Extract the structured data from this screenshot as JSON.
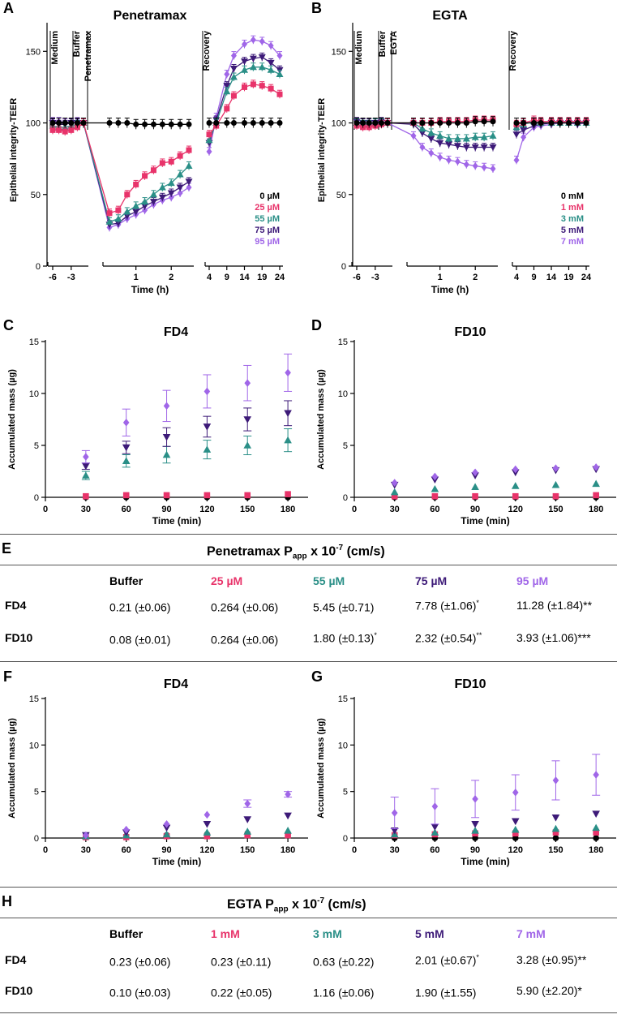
{
  "colors": {
    "buffer": "#000000",
    "c1": "#e8336a",
    "c2": "#2a8f87",
    "c3": "#3d1a78",
    "c4": "#a066e8"
  },
  "chart_data": [
    {
      "panel": "A",
      "type": "line",
      "title": "Penetramax",
      "ylabel": "Epithelial integrity-TEER",
      "xlabel": "Time  (h)",
      "ylim": [
        0,
        170
      ],
      "yticks": [
        "0",
        "50",
        "100",
        "150"
      ],
      "xticks": [
        "-6",
        "-3",
        "1",
        "2",
        "4",
        "9",
        "14",
        "19",
        "24"
      ],
      "phases": [
        "Medium",
        "Buffer",
        "Penetramax",
        "Recovery"
      ],
      "legend": [
        "0 µM",
        "25 µM",
        "55 µM",
        "75 µM",
        "95 µM"
      ],
      "segments": {
        "pre": {
          "x": [
            -6,
            -5,
            -4,
            -3,
            -2,
            -1
          ],
          "series": [
            [
              100,
              100,
              100,
              100,
              100,
              100
            ],
            [
              95,
              95,
              94,
              95,
              97,
              100
            ],
            [
              98,
              97,
              97,
              98,
              99,
              100
            ],
            [
              100,
              99,
              99,
              100,
              100,
              100
            ],
            [
              101,
              101,
              100,
              100,
              101,
              100
            ]
          ]
        },
        "exposure": {
          "x": [
            0.25,
            0.5,
            0.75,
            1,
            1.25,
            1.5,
            1.75,
            2,
            2.25,
            2.5
          ],
          "series": [
            [
              100,
              100,
              100,
              99,
              99,
              99,
              99,
              99,
              99,
              99
            ],
            [
              37,
              39,
              50,
              57,
              63,
              67,
              72,
              73,
              77,
              81
            ],
            [
              31,
              33,
              38,
              42,
              45,
              50,
              55,
              58,
              64,
              70
            ],
            [
              29,
              30,
              35,
              38,
              42,
              45,
              48,
              51,
              55,
              59
            ],
            [
              27,
              29,
              33,
              36,
              39,
              43,
              46,
              48,
              51,
              55
            ]
          ]
        },
        "recovery": {
          "x": [
            4,
            6,
            9,
            11,
            14,
            16.5,
            19,
            21.5,
            24
          ],
          "series": [
            [
              100,
              100,
              100,
              100,
              100,
              100,
              100,
              100,
              100
            ],
            [
              92,
              98,
              110,
              119,
              125,
              127,
              126,
              124,
              120
            ],
            [
              88,
              100,
              122,
              132,
              137,
              139,
              139,
              137,
              134
            ],
            [
              86,
              102,
              126,
              138,
              143,
              145,
              146,
              142,
              137
            ],
            [
              80,
              104,
              134,
              147,
              155,
              158,
              157,
              154,
              147
            ]
          ]
        }
      }
    },
    {
      "panel": "B",
      "type": "line",
      "title": "EGTA",
      "ylabel": "Epithelial integrity-TEER",
      "xlabel": "Time  (h)",
      "ylim": [
        0,
        170
      ],
      "yticks": [
        "0",
        "50",
        "100",
        "150"
      ],
      "xticks": [
        "-6",
        "-3",
        "1",
        "2",
        "4",
        "9",
        "14",
        "19",
        "24"
      ],
      "phases": [
        "Medium",
        "Buffer",
        "EGTA",
        "Recovery"
      ],
      "legend": [
        "0 mM",
        "1 mM",
        "3 mM",
        "5 mM",
        "7 mM"
      ],
      "segments": {
        "pre": {
          "x": [
            -6,
            -5,
            -4,
            -3,
            -2,
            -1
          ],
          "series": [
            [
              100,
              100,
              100,
              100,
              100,
              100
            ],
            [
              98,
              97,
              97,
              98,
              99,
              100
            ],
            [
              100,
              99,
              99,
              100,
              100,
              100
            ],
            [
              101,
              100,
              100,
              100,
              101,
              100
            ],
            [
              99,
              98,
              99,
              99,
              100,
              100
            ]
          ]
        },
        "exposure": {
          "x": [
            0.25,
            0.5,
            0.75,
            1,
            1.25,
            1.5,
            1.75,
            2,
            2.25,
            2.5
          ],
          "series": [
            [
              100,
              100,
              100,
              100,
              100,
              100,
              100,
              101,
              101,
              101
            ],
            [
              100,
              100,
              100,
              101,
              101,
              101,
              101,
              102,
              102,
              102
            ],
            [
              100,
              96,
              93,
              91,
              89,
              89,
              89,
              90,
              90,
              91
            ],
            [
              99,
              93,
              89,
              86,
              85,
              84,
              83,
              83,
              83,
              83
            ],
            [
              91,
              83,
              79,
              76,
              74,
              73,
              71,
              70,
              69,
              68
            ]
          ]
        },
        "recovery": {
          "x": [
            4,
            6,
            9,
            11,
            14,
            16.5,
            19,
            21.5,
            24
          ],
          "series": [
            [
              100,
              100,
              100,
              100,
              100,
              100,
              100,
              100,
              100
            ],
            [
              99,
              100,
              102,
              101,
              101,
              101,
              101,
              101,
              101
            ],
            [
              97,
              99,
              101,
              100,
              100,
              100,
              100,
              100,
              100
            ],
            [
              92,
              95,
              98,
              99,
              100,
              100,
              100,
              100,
              100
            ],
            [
              74,
              90,
              97,
              98,
              99,
              100,
              100,
              99,
              100
            ]
          ]
        }
      }
    },
    {
      "panel": "C",
      "type": "scatter",
      "title": "FD4",
      "xlabel": "Time (min)",
      "ylabel": "Accumulated mass (µg)",
      "ylim": [
        0,
        15
      ],
      "xlim": [
        0,
        195
      ],
      "xticks": [
        "0",
        "30",
        "60",
        "90",
        "120",
        "150",
        "180"
      ],
      "yticks": [
        "0",
        "5",
        "10",
        "15"
      ],
      "x": [
        30,
        60,
        90,
        120,
        150,
        180
      ],
      "series": [
        {
          "name": "Buffer",
          "values": [
            0,
            0,
            0,
            0,
            0,
            0
          ]
        },
        {
          "name": "25 µM",
          "values": [
            0.1,
            0.2,
            0.2,
            0.2,
            0.2,
            0.3
          ]
        },
        {
          "name": "55 µM",
          "values": [
            2.1,
            3.5,
            4.1,
            4.6,
            5.0,
            5.5
          ]
        },
        {
          "name": "75 µM",
          "values": [
            3.0,
            4.8,
            5.8,
            6.8,
            7.5,
            8.1
          ]
        },
        {
          "name": "95 µM",
          "values": [
            3.9,
            7.2,
            8.8,
            10.2,
            11.0,
            12.0
          ]
        }
      ],
      "errors": [
        [
          0,
          0,
          0,
          0,
          0,
          0
        ],
        [
          0.05,
          0.05,
          0.05,
          0.05,
          0.05,
          0.05
        ],
        [
          0.4,
          0.6,
          0.8,
          0.9,
          0.9,
          1.1
        ],
        [
          0.3,
          0.6,
          0.9,
          1.0,
          1.1,
          1.2
        ],
        [
          0.6,
          1.3,
          1.5,
          1.6,
          1.7,
          1.8
        ]
      ]
    },
    {
      "panel": "D",
      "type": "scatter",
      "title": "FD10",
      "xlabel": "Time (min)",
      "ylabel": "Accumulated mass (µg)",
      "ylim": [
        0,
        15
      ],
      "xlim": [
        0,
        195
      ],
      "xticks": [
        "0",
        "30",
        "60",
        "90",
        "120",
        "150",
        "180"
      ],
      "yticks": [
        "0",
        "5",
        "10",
        "15"
      ],
      "x": [
        30,
        60,
        90,
        120,
        150,
        180
      ],
      "series": [
        {
          "name": "Buffer",
          "values": [
            0,
            0,
            0,
            0,
            0,
            0
          ]
        },
        {
          "name": "25 µM",
          "values": [
            0.1,
            0.1,
            0.1,
            0.1,
            0.1,
            0.2
          ]
        },
        {
          "name": "55 µM",
          "values": [
            0.5,
            0.8,
            1.0,
            1.1,
            1.2,
            1.3
          ]
        },
        {
          "name": "75 µM",
          "values": [
            1.2,
            1.7,
            2.1,
            2.4,
            2.6,
            2.7
          ]
        },
        {
          "name": "95 µM",
          "values": [
            1.4,
            2.0,
            2.4,
            2.7,
            2.8,
            2.9
          ]
        }
      ],
      "errors": [
        [
          0,
          0,
          0,
          0,
          0,
          0
        ],
        [
          0,
          0,
          0,
          0,
          0,
          0
        ],
        [
          0.1,
          0.1,
          0.1,
          0.1,
          0.1,
          0.1
        ],
        [
          0.1,
          0.1,
          0.1,
          0.1,
          0.1,
          0.1
        ],
        [
          0.1,
          0.1,
          0.1,
          0.1,
          0.1,
          0.1
        ]
      ]
    },
    {
      "panel": "F",
      "type": "scatter",
      "title": "FD4",
      "xlabel": "Time (min)",
      "ylabel": "Accumulated mass (µg)",
      "ylim": [
        0,
        15
      ],
      "xlim": [
        0,
        195
      ],
      "xticks": [
        "0",
        "30",
        "60",
        "90",
        "120",
        "150",
        "180"
      ],
      "yticks": [
        "0",
        "5",
        "10",
        "15"
      ],
      "x": [
        30,
        60,
        90,
        120,
        150,
        180
      ],
      "series": [
        {
          "name": "Buffer",
          "values": [
            0.1,
            0.2,
            0.3,
            0.4,
            0.5,
            0.5
          ]
        },
        {
          "name": "1 mM",
          "values": [
            0.1,
            0.1,
            0.2,
            0.2,
            0.3,
            0.3
          ]
        },
        {
          "name": "3 mM",
          "values": [
            0.2,
            0.3,
            0.4,
            0.6,
            0.7,
            0.8
          ]
        },
        {
          "name": "5 mM",
          "values": [
            0.3,
            0.6,
            1.1,
            1.5,
            2.0,
            2.4
          ]
        },
        {
          "name": "7 mM",
          "values": [
            0.3,
            0.9,
            1.5,
            2.5,
            3.7,
            4.7
          ]
        }
      ],
      "errors": [
        [
          0,
          0,
          0,
          0,
          0,
          0
        ],
        [
          0,
          0,
          0,
          0,
          0,
          0
        ],
        [
          0,
          0,
          0,
          0,
          0,
          0
        ],
        [
          0.1,
          0.1,
          0.1,
          0.1,
          0.1,
          0.1
        ],
        [
          0.1,
          0.1,
          0.1,
          0.1,
          0.4,
          0.3
        ]
      ]
    },
    {
      "panel": "G",
      "type": "scatter",
      "title": "FD10",
      "xlabel": "Time (min)",
      "ylabel": "Accumulated mass (µg)",
      "ylim": [
        0,
        15
      ],
      "xlim": [
        0,
        195
      ],
      "xticks": [
        "0",
        "30",
        "60",
        "90",
        "120",
        "150",
        "180"
      ],
      "yticks": [
        "0",
        "5",
        "10",
        "15"
      ],
      "x": [
        30,
        60,
        90,
        120,
        150,
        180
      ],
      "series": [
        {
          "name": "Buffer",
          "values": [
            0,
            0,
            0,
            0,
            0,
            0
          ]
        },
        {
          "name": "1 mM",
          "values": [
            0.3,
            0.4,
            0.5,
            0.5,
            0.6,
            0.6
          ]
        },
        {
          "name": "3 mM",
          "values": [
            0.4,
            0.6,
            0.8,
            0.9,
            1.0,
            1.1
          ]
        },
        {
          "name": "5 mM",
          "values": [
            0.8,
            1.2,
            1.5,
            1.8,
            2.2,
            2.6
          ]
        },
        {
          "name": "7 mM",
          "values": [
            2.7,
            3.4,
            4.2,
            4.9,
            6.2,
            6.8
          ]
        }
      ],
      "errors": [
        [
          0,
          0,
          0,
          0,
          0,
          0
        ],
        [
          0,
          0,
          0,
          0,
          0,
          0
        ],
        [
          0,
          0,
          0,
          0,
          0,
          0
        ],
        [
          0.1,
          0.1,
          0.1,
          0.1,
          0.1,
          0.1
        ],
        [
          1.7,
          1.9,
          2.0,
          1.9,
          2.1,
          2.2
        ]
      ]
    }
  ],
  "table_e": {
    "label": "E",
    "title_main": "Penetramax P",
    "title_sub": "app",
    "title_mid": " x 10",
    "title_sup": "-7",
    "title_end": " (cm/s)",
    "headers": [
      "Buffer",
      "25 µM",
      "55 µM",
      "75 µM",
      "95 µM"
    ],
    "rows": [
      {
        "name": "FD4",
        "cells": [
          {
            "v": "0.21 (±0.06)",
            "s": ""
          },
          {
            "v": "0.264 (±0.06)",
            "s": ""
          },
          {
            "v": "5.45 (±0.71)",
            "s": ""
          },
          {
            "v": "7.78 (±1.06)",
            "s": "*"
          },
          {
            "v": "11.28 (±1.84)",
            "s": "**"
          }
        ]
      },
      {
        "name": "FD10",
        "cells": [
          {
            "v": "0.08 (±0.01)",
            "s": ""
          },
          {
            "v": "0.264 (±0.06)",
            "s": ""
          },
          {
            "v": "1.80 (±0.13)",
            "s": "*"
          },
          {
            "v": "2.32 (±0.54)",
            "s": "**"
          },
          {
            "v": "3.93 (±1.06)",
            "s": "***"
          }
        ]
      }
    ]
  },
  "table_h": {
    "label": "H",
    "title_main": "EGTA P",
    "title_sub": "app",
    "title_mid": " x 10",
    "title_sup": "-7",
    "title_end": " (cm/s)",
    "headers": [
      "Buffer",
      "1 mM",
      "3 mM",
      "5 mM",
      "7 mM"
    ],
    "rows": [
      {
        "name": "FD4",
        "cells": [
          {
            "v": "0.23 (±0.06)",
            "s": ""
          },
          {
            "v": "0.23 (±0.11)",
            "s": ""
          },
          {
            "v": "0.63 (±0.22)",
            "s": ""
          },
          {
            "v": "2.01 (±0.67)",
            "s": "*"
          },
          {
            "v": "3.28 (±0.95)",
            "s": "**"
          }
        ]
      },
      {
        "name": "FD10",
        "cells": [
          {
            "v": "0.10 (±0.03)",
            "s": ""
          },
          {
            "v": "0.22 (±0.05)",
            "s": ""
          },
          {
            "v": "1.16 (±0.06)",
            "s": ""
          },
          {
            "v": "1.90 (±1.55)",
            "s": ""
          },
          {
            "v": "5.90 (±2.20)",
            "s": "*"
          }
        ]
      }
    ]
  }
}
